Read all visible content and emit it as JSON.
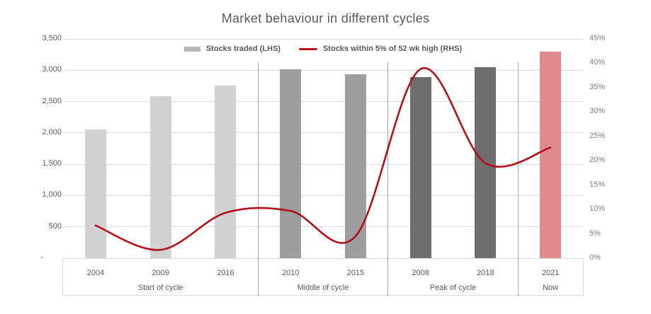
{
  "title": "Market behaviour in different cycles",
  "legend": {
    "bar_label": "Stocks traded (LHS)",
    "line_label": "Stocks within 5% of 52 wk high (RHS)",
    "bar_swatch_color": "#b8b8b8",
    "line_swatch_color": "#b01218"
  },
  "colors": {
    "grid": "#d9d9d9",
    "separator": "#a6a6a6",
    "axis_text": "#595959",
    "right_axis_text": "#7f7f7f",
    "line": "#b01218"
  },
  "chart_data": {
    "type": "bar",
    "subtype": "bar+line combo",
    "title": "Market behaviour in different cycles",
    "categories": [
      "2004",
      "2009",
      "2016",
      "2010",
      "2015",
      "2008",
      "2018",
      "2021"
    ],
    "groups": [
      {
        "label": "Start of cycle",
        "category_count": 3,
        "bar_color": "#d2d2d2"
      },
      {
        "label": "Middle of cycle",
        "category_count": 2,
        "bar_color": "#9e9e9e"
      },
      {
        "label": "Peak of cycle",
        "category_count": 2,
        "bar_color": "#6e6e6e"
      },
      {
        "label": "Now",
        "category_count": 1,
        "bar_color": "#e08b8b"
      }
    ],
    "series": [
      {
        "name": "Stocks traded (LHS)",
        "type": "bar",
        "axis": "left",
        "values": [
          2060,
          2585,
          2755,
          3010,
          2935,
          2895,
          3050,
          3295
        ]
      },
      {
        "name": "Stocks within 5% of 52 wk high (RHS)",
        "type": "line",
        "axis": "right",
        "smooth": true,
        "values_percent": [
          6.7,
          1.7,
          9.3,
          9.7,
          4.5,
          38.8,
          19.5,
          22.7
        ]
      }
    ],
    "left_axis": {
      "min": 0,
      "max": 3500,
      "step": 500,
      "tick_labels": [
        "-",
        "500",
        "1,000",
        "1,500",
        "2,000",
        "2,500",
        "3,000",
        "3,500"
      ]
    },
    "right_axis": {
      "min": 0,
      "max": 45,
      "step": 5,
      "tick_labels": [
        "0%",
        "5%",
        "10%",
        "15%",
        "20%",
        "25%",
        "30%",
        "35%",
        "40%",
        "45%"
      ]
    },
    "grid": true,
    "legend_position": "top"
  }
}
